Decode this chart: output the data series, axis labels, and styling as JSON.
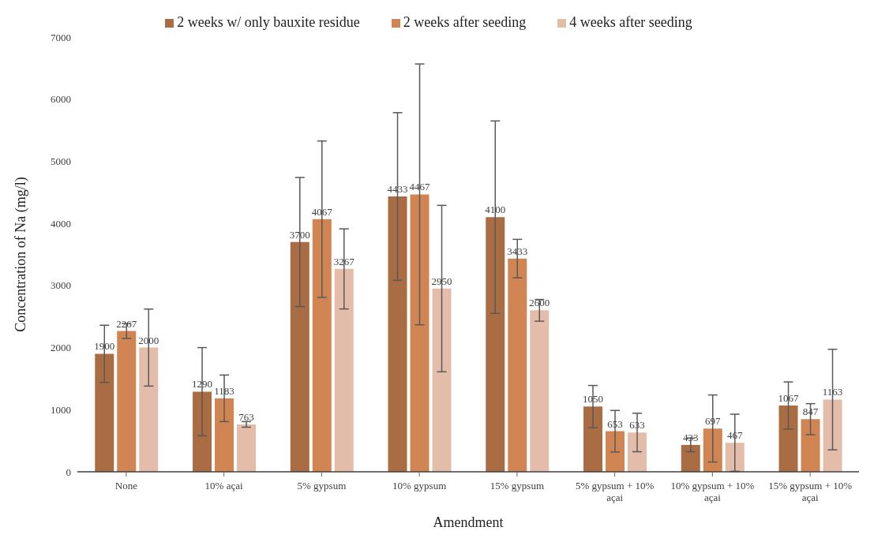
{
  "chart_data": {
    "type": "bar",
    "xlabel": "Amendment",
    "ylabel": "Concentration of Na (mg/l)",
    "categories": [
      "None",
      "10% açai",
      "5% gypsum",
      "10% gypsum",
      "15% gypsum",
      "5% gypsum + 10% açai",
      "10% gypsum + 10% açai",
      "15% gypsum + 10% açai"
    ],
    "series": [
      {
        "name": "2 weeks w/ only bauxite residue",
        "color": "#a96c43",
        "values": [
          1900,
          1290,
          3700,
          4433,
          4100,
          1050,
          433,
          1067
        ],
        "errors": [
          460,
          710,
          1040,
          1350,
          1550,
          340,
          110,
          380
        ]
      },
      {
        "name": "2 weeks after seeding",
        "color": "#d08552",
        "values": [
          2267,
          1183,
          4067,
          4467,
          3433,
          653,
          697,
          847
        ],
        "errors": [
          120,
          375,
          1260,
          2100,
          310,
          335,
          540,
          250
        ]
      },
      {
        "name": "4 weeks after seeding",
        "color": "#e4bcaa",
        "values": [
          2000,
          763,
          3267,
          2950,
          2600,
          633,
          467,
          1163
        ],
        "errors": [
          620,
          45,
          645,
          1340,
          175,
          310,
          460,
          810
        ]
      }
    ],
    "ylim": [
      0,
      7000
    ],
    "yticks": [
      0,
      1000,
      2000,
      3000,
      4000,
      5000,
      6000,
      7000
    ],
    "grid": false,
    "legend": "top",
    "data_labels": true
  }
}
